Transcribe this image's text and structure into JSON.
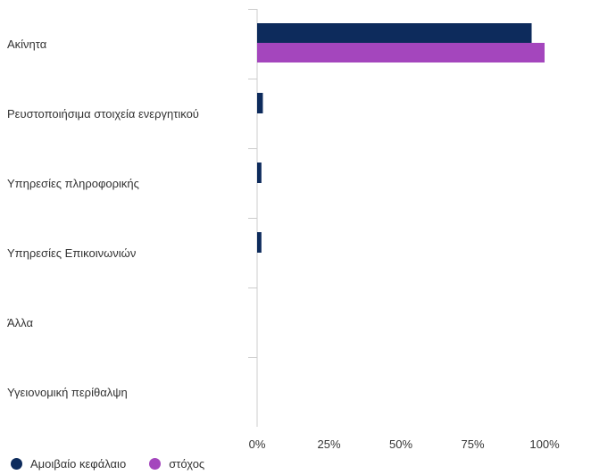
{
  "chart_data": {
    "type": "bar",
    "orientation": "horizontal",
    "categories": [
      "Ακίνητα",
      "Ρευστοποιήσιμα στοιχεία ενεργητικού",
      "Υπηρεσίες πληροφορικής",
      "Υπηρεσίες Επικοινωνιών",
      "Άλλα",
      "Υγειονομική περίθαλψη"
    ],
    "series": [
      {
        "name": "Αμοιβαίο κεφάλαιο",
        "color": "#0d2b5c",
        "values": [
          95.5,
          2,
          1.5,
          1.5,
          0,
          0
        ]
      },
      {
        "name": "στόχος",
        "color": "#a446bd",
        "values": [
          100,
          0,
          0,
          0,
          0,
          0
        ]
      }
    ],
    "xlim": [
      0,
      125
    ],
    "xticks": [
      "0%",
      "25%",
      "50%",
      "75%",
      "100%"
    ],
    "grid": false,
    "legend_position": "bottom-left"
  }
}
